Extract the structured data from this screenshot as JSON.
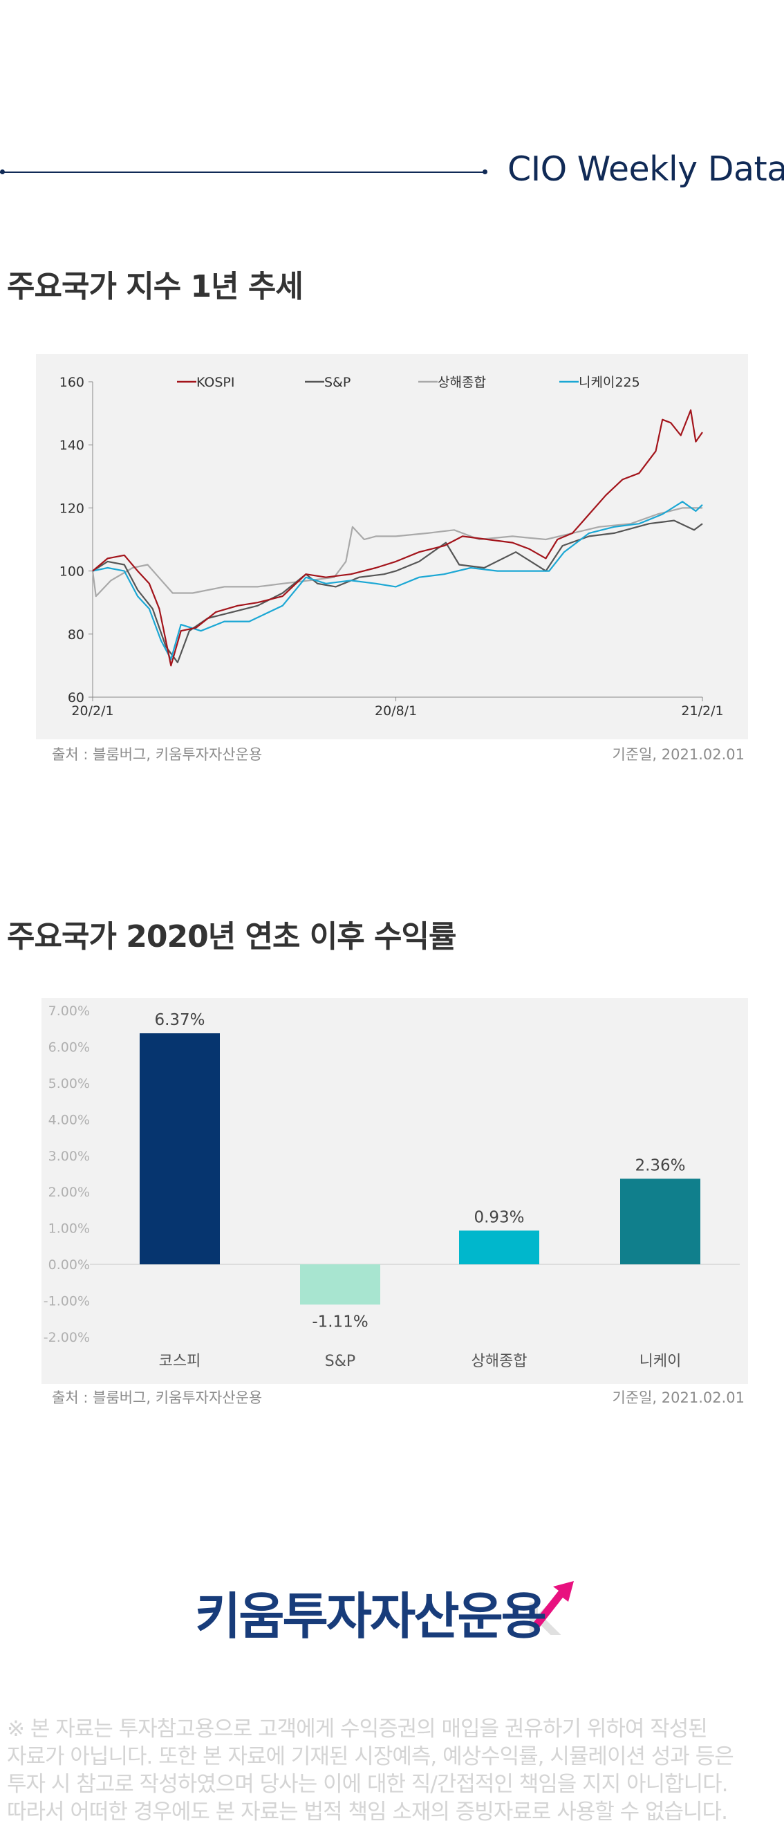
{
  "header": {
    "title": "CIO Weekly Data"
  },
  "section1": {
    "title": "주요국가 지수 1년 추세",
    "source": "출처 : 블룸버그, 키움투자자산운용",
    "date": "기준일, 2021.02.01"
  },
  "section2": {
    "title": "주요국가 2020년 연초 이후 수익률",
    "source": "출처 : 블룸버그, 키움투자자산운용",
    "date": "기준일, 2021.02.01"
  },
  "logo": {
    "text": "키움투자자산운용"
  },
  "disclaimer": [
    "※ 본 자료는 투자참고용으로 고객에게 수익증권의 매입을 권유하기 위하여 작성된",
    "자료가 아닙니다. 또한 본 자료에 기재된 시장예측, 예상수익률, 시뮬레이션 성과 등은",
    "투자 시 참고로 작성하였으며 당사는 이에 대한 직/간접적인 책임을 지지 아니합니다.",
    "따라서 어떠한 경우에도 본 자료는 법적 책임 소재의 증빙자료로 사용할 수 없습니다."
  ],
  "colors": {
    "navy": "#102a56",
    "kospi": "#a3141b",
    "sp": "#555555",
    "shanghai": "#a9a9a9",
    "nikkei": "#1ba7d4",
    "bar_kospi": "#06356f",
    "bar_sp": "#a8e5d0",
    "bar_shanghai": "#00b7cc",
    "bar_nikkei": "#107f8c",
    "logo_accent": "#e8117f"
  },
  "chart_data": [
    {
      "type": "line",
      "ylim": [
        60,
        160
      ],
      "yticks": [
        "60",
        "80",
        "100",
        "120",
        "140",
        "160"
      ],
      "xticks": [
        "20/2/1",
        "20/8/1",
        "21/2/1"
      ],
      "xrange": [
        "2020-02-01",
        "2021-02-01"
      ],
      "legend_position": "top",
      "series": [
        {
          "name": "KOSPI",
          "color": "#a3141b",
          "points": [
            [
              "2020-02-01",
              100
            ],
            [
              "2020-02-10",
              104
            ],
            [
              "2020-02-20",
              105
            ],
            [
              "2020-02-28",
              100
            ],
            [
              "2020-03-06",
              96
            ],
            [
              "2020-03-12",
              88
            ],
            [
              "2020-03-19",
              70
            ],
            [
              "2020-03-25",
              81
            ],
            [
              "2020-04-03",
              82
            ],
            [
              "2020-04-15",
              87
            ],
            [
              "2020-04-28",
              89
            ],
            [
              "2020-05-10",
              90
            ],
            [
              "2020-05-25",
              92
            ],
            [
              "2020-06-08",
              99
            ],
            [
              "2020-06-20",
              98
            ],
            [
              "2020-07-05",
              99
            ],
            [
              "2020-07-20",
              101
            ],
            [
              "2020-08-01",
              103
            ],
            [
              "2020-08-15",
              106
            ],
            [
              "2020-08-30",
              108
            ],
            [
              "2020-09-10",
              111
            ],
            [
              "2020-09-25",
              110
            ],
            [
              "2020-10-10",
              109
            ],
            [
              "2020-10-20",
              107
            ],
            [
              "2020-10-30",
              104
            ],
            [
              "2020-11-06",
              110
            ],
            [
              "2020-11-15",
              112
            ],
            [
              "2020-11-25",
              118
            ],
            [
              "2020-12-05",
              124
            ],
            [
              "2020-12-15",
              129
            ],
            [
              "2020-12-25",
              131
            ],
            [
              "2021-01-04",
              138
            ],
            [
              "2021-01-08",
              148
            ],
            [
              "2021-01-13",
              147
            ],
            [
              "2021-01-19",
              143
            ],
            [
              "2021-01-25",
              151
            ],
            [
              "2021-01-28",
              141
            ],
            [
              "2021-02-01",
              144
            ]
          ]
        },
        {
          "name": "S&P",
          "color": "#555555",
          "points": [
            [
              "2020-02-01",
              100
            ],
            [
              "2020-02-10",
              103
            ],
            [
              "2020-02-20",
              102
            ],
            [
              "2020-02-28",
              94
            ],
            [
              "2020-03-08",
              88
            ],
            [
              "2020-03-16",
              76
            ],
            [
              "2020-03-23",
              71
            ],
            [
              "2020-03-30",
              81
            ],
            [
              "2020-04-10",
              85
            ],
            [
              "2020-04-25",
              87
            ],
            [
              "2020-05-10",
              89
            ],
            [
              "2020-05-25",
              93
            ],
            [
              "2020-06-08",
              99
            ],
            [
              "2020-06-15",
              96
            ],
            [
              "2020-06-26",
              95
            ],
            [
              "2020-07-10",
              98
            ],
            [
              "2020-07-25",
              99
            ],
            [
              "2020-08-01",
              100
            ],
            [
              "2020-08-15",
              103
            ],
            [
              "2020-08-31",
              109
            ],
            [
              "2020-09-08",
              102
            ],
            [
              "2020-09-23",
              101
            ],
            [
              "2020-10-12",
              106
            ],
            [
              "2020-10-30",
              100
            ],
            [
              "2020-11-09",
              108
            ],
            [
              "2020-11-25",
              111
            ],
            [
              "2020-12-10",
              112
            ],
            [
              "2020-12-31",
              115
            ],
            [
              "2021-01-15",
              116
            ],
            [
              "2021-01-27",
              113
            ],
            [
              "2021-02-01",
              115
            ]
          ]
        },
        {
          "name": "상해종합",
          "color": "#a9a9a9",
          "points": [
            [
              "2020-02-01",
              100
            ],
            [
              "2020-02-03",
              92
            ],
            [
              "2020-02-12",
              97
            ],
            [
              "2020-02-25",
              101
            ],
            [
              "2020-03-05",
              102
            ],
            [
              "2020-03-10",
              99
            ],
            [
              "2020-03-20",
              93
            ],
            [
              "2020-04-01",
              93
            ],
            [
              "2020-04-20",
              95
            ],
            [
              "2020-05-10",
              95
            ],
            [
              "2020-05-25",
              96
            ],
            [
              "2020-06-10",
              97
            ],
            [
              "2020-06-25",
              98
            ],
            [
              "2020-07-02",
              103
            ],
            [
              "2020-07-06",
              114
            ],
            [
              "2020-07-13",
              110
            ],
            [
              "2020-07-20",
              111
            ],
            [
              "2020-08-01",
              111
            ],
            [
              "2020-08-20",
              112
            ],
            [
              "2020-09-05",
              113
            ],
            [
              "2020-09-20",
              110
            ],
            [
              "2020-10-10",
              111
            ],
            [
              "2020-10-30",
              110
            ],
            [
              "2020-11-15",
              112
            ],
            [
              "2020-12-01",
              114
            ],
            [
              "2020-12-20",
              115
            ],
            [
              "2021-01-05",
              118
            ],
            [
              "2021-01-20",
              120
            ],
            [
              "2021-02-01",
              120
            ]
          ]
        },
        {
          "name": "니케이225",
          "color": "#1ba7d4",
          "points": [
            [
              "2020-02-01",
              100
            ],
            [
              "2020-02-10",
              101
            ],
            [
              "2020-02-20",
              100
            ],
            [
              "2020-02-28",
              92
            ],
            [
              "2020-03-06",
              88
            ],
            [
              "2020-03-13",
              78
            ],
            [
              "2020-03-19",
              72
            ],
            [
              "2020-03-25",
              83
            ],
            [
              "2020-04-06",
              81
            ],
            [
              "2020-04-20",
              84
            ],
            [
              "2020-05-05",
              84
            ],
            [
              "2020-05-25",
              89
            ],
            [
              "2020-06-08",
              98
            ],
            [
              "2020-06-20",
              96
            ],
            [
              "2020-07-05",
              97
            ],
            [
              "2020-07-20",
              96
            ],
            [
              "2020-08-01",
              95
            ],
            [
              "2020-08-15",
              98
            ],
            [
              "2020-08-30",
              99
            ],
            [
              "2020-09-15",
              101
            ],
            [
              "2020-10-01",
              100
            ],
            [
              "2020-10-20",
              100
            ],
            [
              "2020-11-01",
              100
            ],
            [
              "2020-11-10",
              106
            ],
            [
              "2020-11-25",
              112
            ],
            [
              "2020-12-10",
              114
            ],
            [
              "2020-12-25",
              115
            ],
            [
              "2021-01-08",
              118
            ],
            [
              "2021-01-20",
              122
            ],
            [
              "2021-01-28",
              119
            ],
            [
              "2021-02-01",
              121
            ]
          ]
        }
      ]
    },
    {
      "type": "bar",
      "categories": [
        "코스피",
        "S&P",
        "상해종합",
        "니케이"
      ],
      "values": [
        6.37,
        -1.11,
        0.93,
        2.36
      ],
      "value_labels": [
        "6.37%",
        "-1.11%",
        "0.93%",
        "2.36%"
      ],
      "bar_colors": [
        "#06356f",
        "#a8e5d0",
        "#00b7cc",
        "#107f8c"
      ],
      "ylim": [
        -2,
        7
      ],
      "yticks": [
        "-2.00%",
        "-1.00%",
        "0.00%",
        "1.00%",
        "2.00%",
        "3.00%",
        "4.00%",
        "5.00%",
        "6.00%",
        "7.00%"
      ]
    }
  ]
}
